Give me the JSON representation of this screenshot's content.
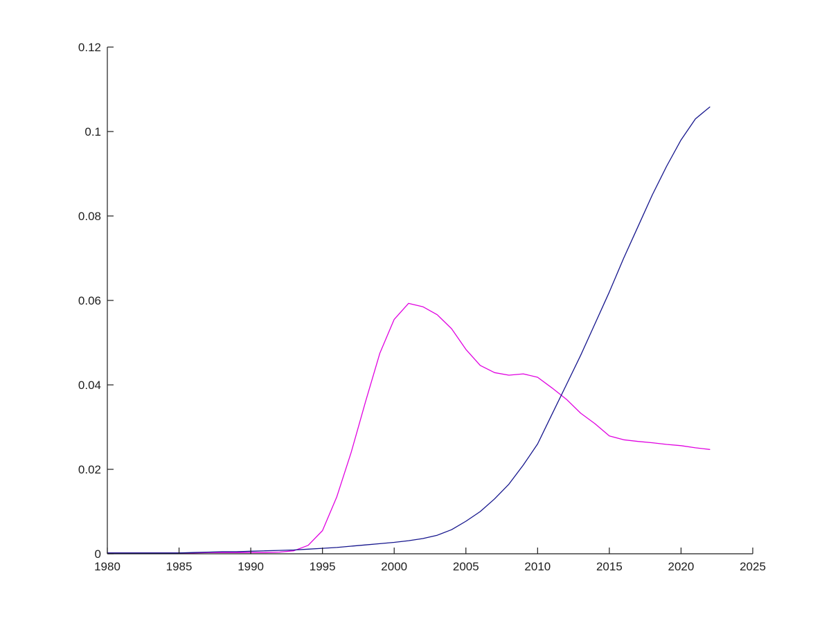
{
  "figure": {
    "background_color": "#ffffff",
    "axis_color": "#1c1c1c",
    "tick_label_color": "#1c1c1c"
  },
  "chart_data": {
    "type": "line",
    "title": "",
    "xlabel": "",
    "ylabel": "",
    "legend": "none",
    "grid": false,
    "box": "left-bottom-axes-only",
    "xlim": [
      1980,
      2025
    ],
    "ylim": [
      0,
      0.12
    ],
    "x_ticks": [
      1980,
      1985,
      1990,
      1995,
      2000,
      2005,
      2010,
      2015,
      2020,
      2025
    ],
    "x_tick_labels": [
      "1980",
      "1985",
      "1990",
      "1995",
      "2000",
      "2005",
      "2010",
      "2015",
      "2020",
      "2025"
    ],
    "y_ticks": [
      0,
      0.02,
      0.04,
      0.06,
      0.08,
      0.1,
      0.12
    ],
    "y_tick_labels": [
      "0",
      "0.02",
      "0.04",
      "0.06",
      "0.08",
      "0.1",
      "0.12"
    ],
    "x": [
      1980,
      1981,
      1982,
      1983,
      1984,
      1985,
      1986,
      1987,
      1988,
      1989,
      1990,
      1991,
      1992,
      1993,
      1994,
      1995,
      1996,
      1997,
      1998,
      1999,
      2000,
      2001,
      2002,
      2003,
      2004,
      2005,
      2006,
      2007,
      2008,
      2009,
      2010,
      2011,
      2012,
      2013,
      2014,
      2015,
      2016,
      2017,
      2018,
      2019,
      2020,
      2021,
      2022
    ],
    "series": [
      {
        "name": "magenta-line",
        "color": "#e000e0",
        "values": [
          0.0002,
          0.0002,
          0.0002,
          0.0002,
          0.0002,
          0.0002,
          0.0002,
          0.0003,
          0.0003,
          0.0003,
          0.0003,
          0.0003,
          0.0004,
          0.0007,
          0.002,
          0.0055,
          0.0135,
          0.024,
          0.036,
          0.0475,
          0.0555,
          0.0593,
          0.0585,
          0.0566,
          0.0533,
          0.0484,
          0.0446,
          0.0429,
          0.0423,
          0.0426,
          0.0418,
          0.0393,
          0.0366,
          0.0333,
          0.0308,
          0.0279,
          0.027,
          0.0266,
          0.0263,
          0.0259,
          0.0256,
          0.0251,
          0.0247
        ]
      },
      {
        "name": "dark-blue-line",
        "color": "#14148c",
        "values": [
          0.0002,
          0.0002,
          0.0002,
          0.0002,
          0.0002,
          0.0002,
          0.0003,
          0.0004,
          0.0005,
          0.0005,
          0.0006,
          0.0007,
          0.0008,
          0.0009,
          0.0011,
          0.0013,
          0.0015,
          0.0018,
          0.0021,
          0.0024,
          0.0027,
          0.0031,
          0.0036,
          0.0044,
          0.0057,
          0.0077,
          0.01,
          0.013,
          0.0165,
          0.021,
          0.026,
          0.033,
          0.04,
          0.047,
          0.0545,
          0.062,
          0.07,
          0.0775,
          0.085,
          0.0918,
          0.098,
          0.103,
          0.1058
        ]
      }
    ]
  }
}
